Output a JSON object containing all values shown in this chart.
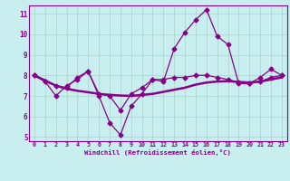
{
  "xlabel": "Windchill (Refroidissement éolien,°C)",
  "background_color": "#c8eef0",
  "line_color": "#880088",
  "grid_color": "#b0d8d0",
  "xlim": [
    -0.5,
    23.5
  ],
  "ylim": [
    4.8,
    11.4
  ],
  "yticks": [
    5,
    6,
    7,
    8,
    9,
    10,
    11
  ],
  "xticks": [
    0,
    1,
    2,
    3,
    4,
    5,
    6,
    7,
    8,
    9,
    10,
    11,
    12,
    13,
    14,
    15,
    16,
    17,
    18,
    19,
    20,
    21,
    22,
    23
  ],
  "series1_x": [
    0,
    1,
    2,
    3,
    4,
    5,
    6,
    7,
    8,
    9,
    10,
    11,
    12,
    13,
    14,
    15,
    16,
    17,
    18,
    19,
    20,
    21,
    22,
    23
  ],
  "series1_y": [
    8.0,
    7.7,
    7.0,
    7.5,
    7.8,
    8.2,
    7.0,
    5.7,
    5.1,
    6.5,
    7.1,
    7.8,
    7.7,
    9.3,
    10.1,
    10.7,
    11.2,
    9.9,
    9.5,
    7.6,
    7.6,
    7.9,
    8.3,
    8.0
  ],
  "series2_x": [
    0,
    1,
    2,
    3,
    4,
    5,
    6,
    7,
    8,
    9,
    10,
    11,
    12,
    13,
    14,
    15,
    16,
    17,
    18,
    19,
    20,
    21,
    22,
    23
  ],
  "series2_y": [
    8.0,
    7.75,
    7.5,
    7.35,
    7.25,
    7.18,
    7.1,
    7.05,
    7.02,
    7.0,
    7.05,
    7.1,
    7.2,
    7.3,
    7.4,
    7.55,
    7.65,
    7.7,
    7.72,
    7.68,
    7.65,
    7.7,
    7.8,
    7.9
  ],
  "series3_x": [
    0,
    1,
    2,
    3,
    4,
    5,
    6,
    7,
    8,
    9,
    10,
    11,
    12,
    13,
    14,
    15,
    16,
    17,
    18,
    19,
    20,
    21,
    22,
    23
  ],
  "series3_y": [
    8.0,
    7.7,
    7.5,
    7.4,
    7.9,
    8.2,
    7.1,
    7.0,
    6.3,
    7.1,
    7.4,
    7.8,
    7.8,
    7.9,
    7.9,
    8.0,
    8.0,
    7.9,
    7.8,
    7.65,
    7.6,
    7.7,
    7.9,
    8.0
  ],
  "lw_thin": 0.9,
  "lw_thick": 1.8,
  "markersize": 2.5
}
